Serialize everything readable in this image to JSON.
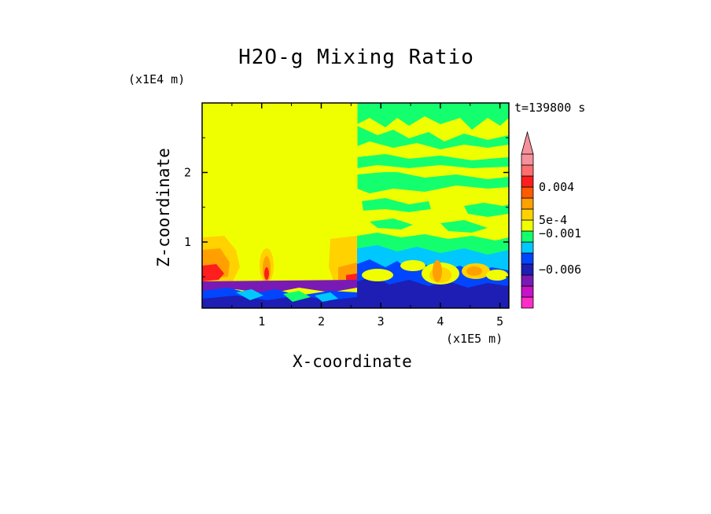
{
  "chart_data": {
    "type": "heatmap",
    "title": "H2O-g Mixing Ratio",
    "xlabel": "X-coordinate",
    "ylabel": "Z-coordinate",
    "x_unit": "(x1E5 m)",
    "y_unit": "(x1E4 m)",
    "time_label": "t=139800 s",
    "xlim": [
      0,
      5.15
    ],
    "ylim": [
      0.05,
      3.0
    ],
    "x_ticks": [
      1,
      2,
      3,
      4,
      5
    ],
    "y_ticks": [
      1,
      2
    ],
    "colorbar": {
      "extend": "max",
      "labels": [
        {
          "text": "0.004",
          "value": 0.004
        },
        {
          "text": "5e-4",
          "value": 0.0005
        },
        {
          "text": "−0.001",
          "value": -0.001
        },
        {
          "text": "−0.006",
          "value": -0.006
        }
      ],
      "colors": [
        "#ff2dc8",
        "#c812c8",
        "#7a1ab4",
        "#1e1eb4",
        "#0046ff",
        "#00c8ff",
        "#14ff6e",
        "#f0ff00",
        "#ffd200",
        "#ffa000",
        "#ff5a00",
        "#ff1e1e",
        "#ff6e6e",
        "#f5919b"
      ]
    },
    "colors": {
      "background_field": "#f0ff00",
      "moist_anomaly": "#ff1e1e",
      "dry_anomaly": "#1e1eb4"
    }
  }
}
